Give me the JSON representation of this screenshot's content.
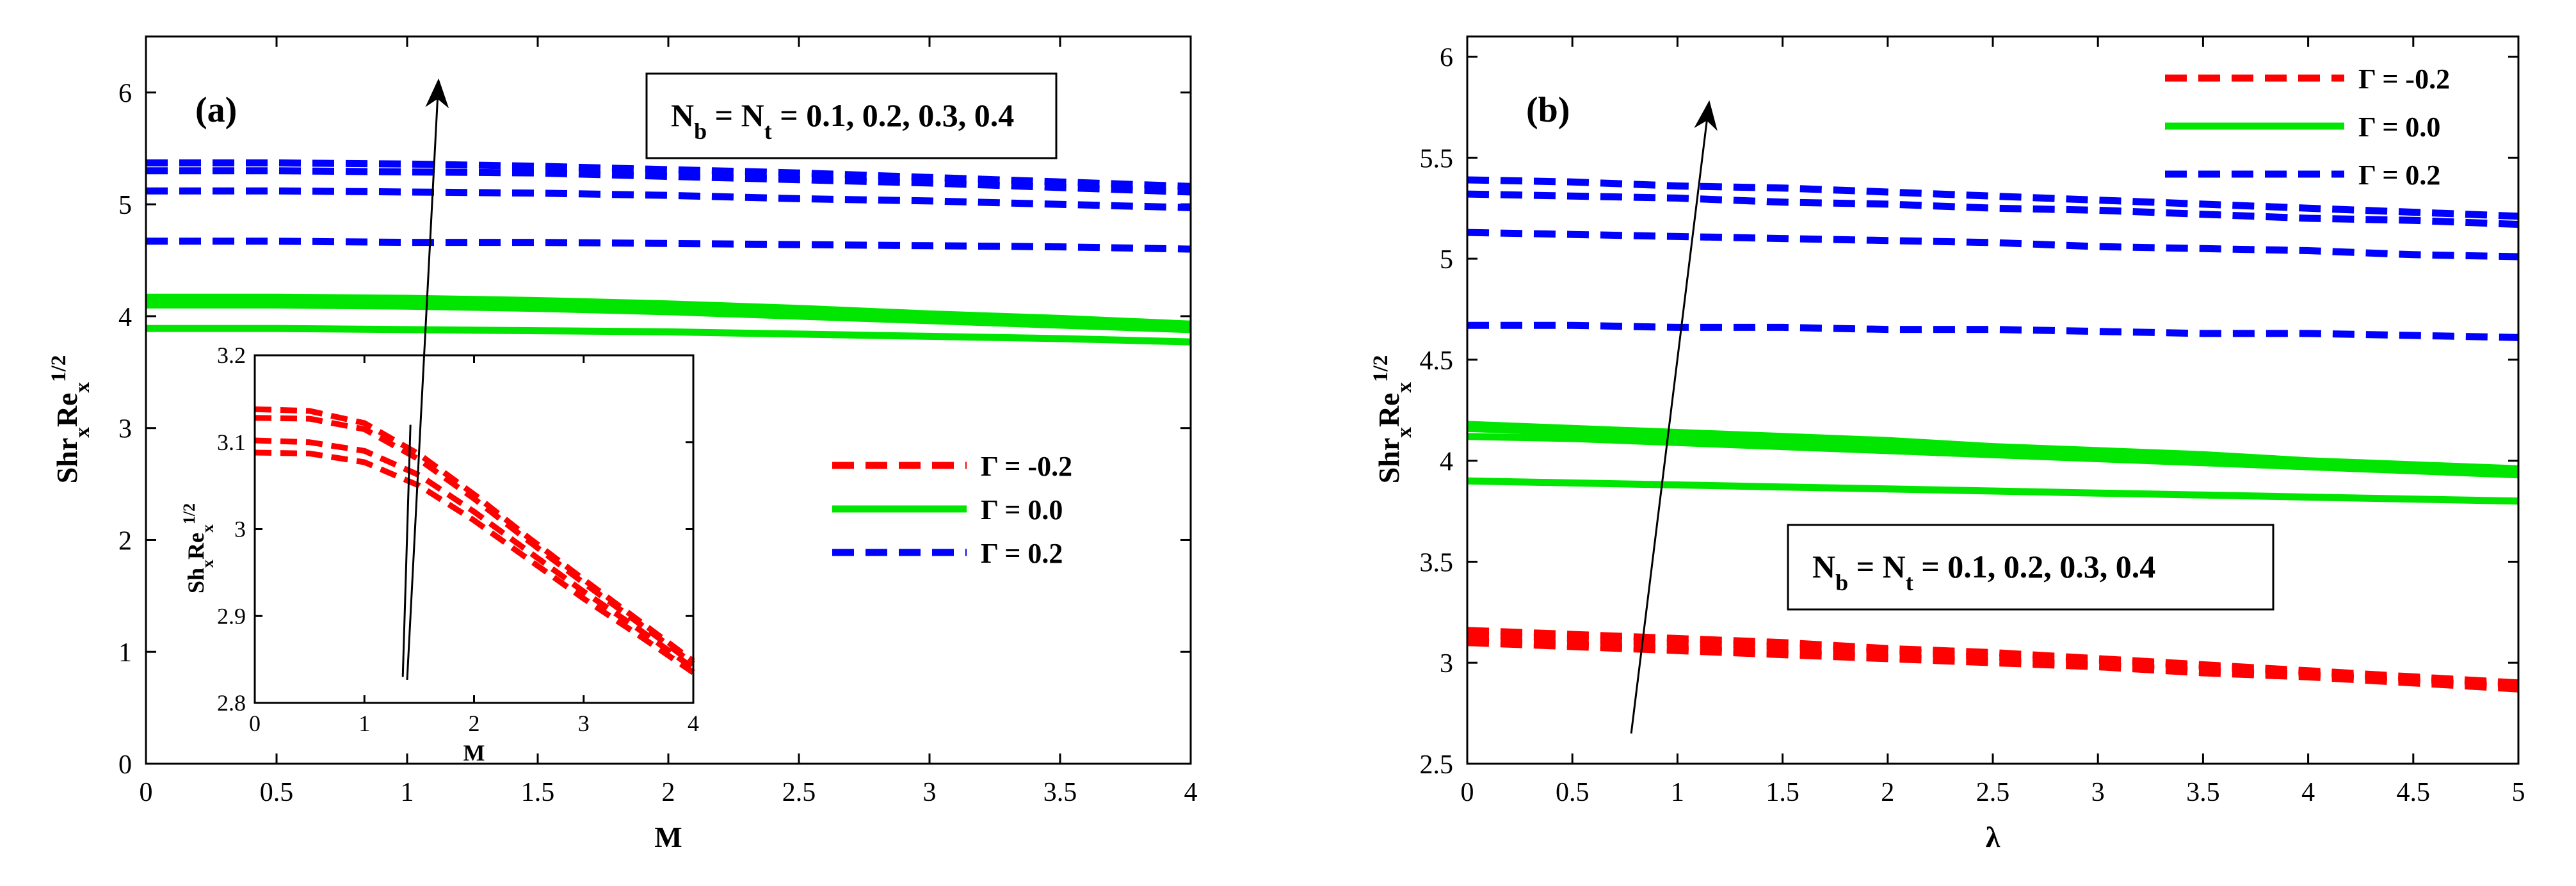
{
  "chart_data": [
    {
      "type": "line",
      "panel_label": "(a)",
      "xlabel": "M",
      "ylabel": {
        "base": "Shr",
        "sub1": "x",
        "mid": "Re",
        "sub2": "x",
        "sup": "1/2"
      },
      "xlim": [
        0,
        4
      ],
      "ylim": [
        0,
        6.5
      ],
      "xticks": [
        "0",
        "0.5",
        "1",
        "1.5",
        "2",
        "2.5",
        "3",
        "3.5",
        "4"
      ],
      "yticks": [
        "0",
        "1",
        "2",
        "3",
        "4",
        "5",
        "6"
      ],
      "x": [
        0,
        0.5,
        1,
        1.5,
        2,
        2.5,
        3,
        3.5,
        4
      ],
      "annotation": {
        "nb": "N",
        "nb_sub": "b",
        "eq": " = N",
        "nt_sub": "t",
        "values": " = 0.1, 0.2, 0.3, 0.4"
      },
      "arrow": {
        "from": [
          1.0,
          0.75
        ],
        "to": [
          1.12,
          6.1
        ]
      },
      "legend": [
        {
          "label": "Γ = -0.2",
          "color": "#ff0000",
          "style": "dashed"
        },
        {
          "label": "Γ = 0.0",
          "color": "#00e600",
          "style": "solid"
        },
        {
          "label": "Γ = 0.2",
          "color": "#0000ff",
          "style": "dashed"
        }
      ],
      "series": [
        {
          "name": "Γ = 0.2, Nb=Nt=0.1",
          "color": "#0000ff",
          "style": "dashed",
          "values": [
            4.67,
            4.67,
            4.66,
            4.66,
            4.65,
            4.64,
            4.63,
            4.62,
            4.6
          ]
        },
        {
          "name": "Γ = 0.2, Nb=Nt=0.2",
          "color": "#0000ff",
          "style": "dashed",
          "values": [
            5.12,
            5.12,
            5.11,
            5.1,
            5.08,
            5.05,
            5.03,
            5.0,
            4.97
          ]
        },
        {
          "name": "Γ = 0.2, Nb=Nt=0.3",
          "color": "#0000ff",
          "style": "dashed",
          "values": [
            5.3,
            5.3,
            5.29,
            5.28,
            5.25,
            5.22,
            5.19,
            5.15,
            5.11
          ]
        },
        {
          "name": "Γ = 0.2, Nb=Nt=0.4",
          "color": "#0000ff",
          "style": "dashed",
          "values": [
            5.37,
            5.37,
            5.36,
            5.34,
            5.31,
            5.28,
            5.24,
            5.2,
            5.16
          ]
        },
        {
          "name": "Γ = 0.0, Nb=Nt=0.1",
          "color": "#00e600",
          "style": "solid",
          "values": [
            3.89,
            3.89,
            3.88,
            3.87,
            3.86,
            3.84,
            3.82,
            3.8,
            3.77
          ]
        },
        {
          "name": "Γ = 0.0, Nb=Nt=0.2",
          "color": "#00e600",
          "style": "solid",
          "values": [
            4.1,
            4.1,
            4.09,
            4.07,
            4.04,
            4.0,
            3.96,
            3.92,
            3.88
          ]
        },
        {
          "name": "Γ = 0.0, Nb=Nt=0.3",
          "color": "#00e600",
          "style": "solid",
          "values": [
            4.14,
            4.14,
            4.13,
            4.11,
            4.08,
            4.04,
            4.0,
            3.95,
            3.91
          ]
        },
        {
          "name": "Γ = 0.0, Nb=Nt=0.4",
          "color": "#00e600",
          "style": "solid",
          "values": [
            4.17,
            4.17,
            4.16,
            4.14,
            4.11,
            4.07,
            4.02,
            3.98,
            3.93
          ]
        }
      ],
      "inset": {
        "xlabel": "M",
        "ylabel": {
          "base": "Sh",
          "sub1": "x",
          "mid": "Re",
          "sub2": "x",
          "sup": "1/2"
        },
        "xlim": [
          0,
          4
        ],
        "ylim": [
          2.8,
          3.2
        ],
        "xticks": [
          "0",
          "1",
          "2",
          "3",
          "4"
        ],
        "yticks": [
          "2.8",
          "2.9",
          "3",
          "3.1",
          "3.2"
        ],
        "x": [
          0,
          0.5,
          1,
          1.5,
          2,
          2.5,
          3,
          3.5,
          4
        ],
        "series": [
          {
            "name": "Γ = -0.2, Nb=Nt=0.1",
            "color": "#ff0000",
            "style": "dashed",
            "values": [
              3.088,
              3.087,
              3.077,
              3.05,
              3.01,
              2.965,
              2.92,
              2.878,
              2.835
            ]
          },
          {
            "name": "Γ = -0.2, Nb=Nt=0.2",
            "color": "#ff0000",
            "style": "dashed",
            "values": [
              3.102,
              3.1,
              3.09,
              3.062,
              3.02,
              2.974,
              2.928,
              2.885,
              2.84
            ]
          },
          {
            "name": "Γ = -0.2, Nb=Nt=0.3",
            "color": "#ff0000",
            "style": "dashed",
            "values": [
              3.128,
              3.127,
              3.115,
              3.08,
              3.035,
              2.986,
              2.938,
              2.892,
              2.845
            ]
          },
          {
            "name": "Γ = -0.2, Nb=Nt=0.4",
            "color": "#ff0000",
            "style": "dashed",
            "values": [
              3.138,
              3.136,
              3.122,
              3.086,
              3.04,
              2.99,
              2.942,
              2.895,
              2.848
            ]
          }
        ],
        "arrow": {
          "from": [
            1.35,
            2.83
          ],
          "to": [
            1.42,
            3.12
          ]
        }
      }
    },
    {
      "type": "line",
      "panel_label": "(b)",
      "xlabel": "λ",
      "ylabel": {
        "base": "Shr",
        "sub1": "x",
        "mid": "Re",
        "sub2": "x",
        "sup": "1/2"
      },
      "xlim": [
        0,
        5
      ],
      "ylim": [
        2.5,
        6.1
      ],
      "xticks": [
        "0",
        "0.5",
        "1",
        "1.5",
        "2",
        "2.5",
        "3",
        "3.5",
        "4",
        "4.5",
        "5"
      ],
      "yticks": [
        "2.5",
        "3",
        "3.5",
        "4",
        "4.5",
        "5",
        "5.5",
        "6"
      ],
      "x": [
        0,
        0.5,
        1,
        1.5,
        2,
        2.5,
        3,
        3.5,
        4,
        4.5,
        5
      ],
      "annotation": {
        "nb": "N",
        "nb_sub": "b",
        "eq": " = N",
        "nt_sub": "t",
        "values": " = 0.1, 0.2, 0.3, 0.4"
      },
      "arrow": {
        "from": [
          0.78,
          2.65
        ],
        "to": [
          1.15,
          5.77
        ]
      },
      "legend": [
        {
          "label": "Γ = -0.2",
          "color": "#ff0000",
          "style": "dashed"
        },
        {
          "label": "Γ = 0.0",
          "color": "#00e600",
          "style": "solid"
        },
        {
          "label": "Γ = 0.2",
          "color": "#0000ff",
          "style": "dashed"
        }
      ],
      "series": [
        {
          "name": "Γ = -0.2, Nb=Nt=0.1",
          "color": "#ff0000",
          "style": "dashed",
          "values": [
            3.1,
            3.08,
            3.06,
            3.04,
            3.02,
            3.0,
            2.98,
            2.95,
            2.93,
            2.9,
            2.87
          ]
        },
        {
          "name": "Γ = -0.2, Nb=Nt=0.2",
          "color": "#ff0000",
          "style": "dashed",
          "values": [
            3.11,
            3.09,
            3.07,
            3.05,
            3.03,
            3.01,
            2.99,
            2.96,
            2.94,
            2.91,
            2.88
          ]
        },
        {
          "name": "Γ = -0.2, Nb=Nt=0.3",
          "color": "#ff0000",
          "style": "dashed",
          "values": [
            3.14,
            3.12,
            3.1,
            3.08,
            3.06,
            3.03,
            3.01,
            2.98,
            2.95,
            2.92,
            2.89
          ]
        },
        {
          "name": "Γ = -0.2, Nb=Nt=0.4",
          "color": "#ff0000",
          "style": "dashed",
          "values": [
            3.16,
            3.14,
            3.12,
            3.1,
            3.07,
            3.05,
            3.02,
            2.99,
            2.96,
            2.93,
            2.9
          ]
        },
        {
          "name": "Γ = 0.0, Nb=Nt=0.1",
          "color": "#00e600",
          "style": "solid",
          "values": [
            3.9,
            3.89,
            3.88,
            3.87,
            3.86,
            3.85,
            3.84,
            3.83,
            3.82,
            3.81,
            3.8
          ]
        },
        {
          "name": "Γ = 0.0, Nb=Nt=0.2",
          "color": "#00e600",
          "style": "solid",
          "values": [
            4.12,
            4.11,
            4.09,
            4.07,
            4.05,
            4.03,
            4.01,
            3.99,
            3.97,
            3.95,
            3.93
          ]
        },
        {
          "name": "Γ = 0.0, Nb=Nt=0.3",
          "color": "#00e600",
          "style": "solid",
          "values": [
            4.16,
            4.14,
            4.12,
            4.1,
            4.08,
            4.06,
            4.04,
            4.01,
            3.99,
            3.97,
            3.95
          ]
        },
        {
          "name": "Γ = 0.0, Nb=Nt=0.4",
          "color": "#00e600",
          "style": "solid",
          "values": [
            4.18,
            4.16,
            4.14,
            4.12,
            4.1,
            4.07,
            4.05,
            4.03,
            4.0,
            3.98,
            3.96
          ]
        },
        {
          "name": "Γ = 0.2, Nb=Nt=0.1",
          "color": "#0000ff",
          "style": "dashed",
          "values": [
            4.67,
            4.67,
            4.66,
            4.66,
            4.65,
            4.65,
            4.64,
            4.63,
            4.63,
            4.62,
            4.61
          ]
        },
        {
          "name": "Γ = 0.2, Nb=Nt=0.2",
          "color": "#0000ff",
          "style": "dashed",
          "values": [
            5.13,
            5.12,
            5.11,
            5.1,
            5.09,
            5.08,
            5.06,
            5.05,
            5.04,
            5.02,
            5.01
          ]
        },
        {
          "name": "Γ = 0.2, Nb=Nt=0.3",
          "color": "#0000ff",
          "style": "dashed",
          "values": [
            5.32,
            5.31,
            5.3,
            5.28,
            5.27,
            5.25,
            5.24,
            5.22,
            5.2,
            5.19,
            5.17
          ]
        },
        {
          "name": "Γ = 0.2, Nb=Nt=0.4",
          "color": "#0000ff",
          "style": "dashed",
          "values": [
            5.39,
            5.38,
            5.36,
            5.35,
            5.33,
            5.31,
            5.29,
            5.27,
            5.25,
            5.23,
            5.21
          ]
        }
      ]
    }
  ]
}
